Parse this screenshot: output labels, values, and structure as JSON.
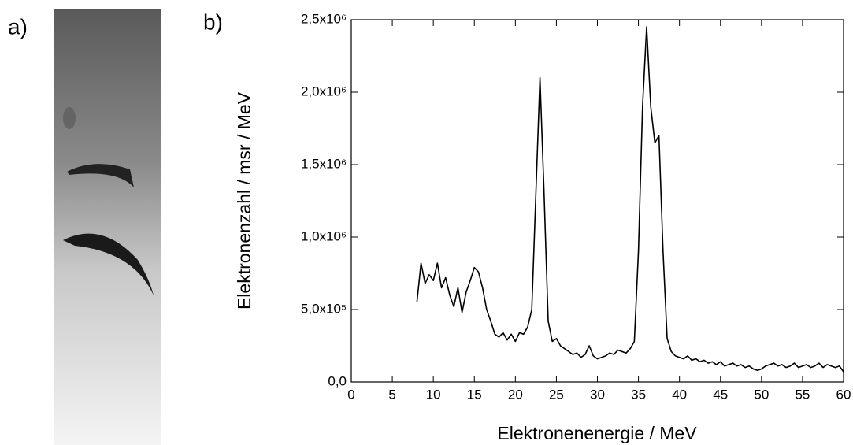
{
  "panel_labels": [
    "a)",
    "b)"
  ],
  "chart_data": {
    "type": "line",
    "xlabel": "Elektronenenergie / MeV",
    "ylabel": "Elektronenzahl / msr / MeV",
    "color": "#000000",
    "x": [
      8,
      8.5,
      9,
      9.5,
      10,
      10.5,
      11,
      11.5,
      12,
      12.5,
      13,
      13.5,
      14,
      14.5,
      15,
      15.5,
      16,
      16.5,
      17,
      17.5,
      18,
      18.5,
      19,
      19.5,
      20,
      20.5,
      21,
      21.5,
      22,
      22.5,
      23,
      23.5,
      24,
      24.5,
      25,
      25.5,
      26,
      26.5,
      27,
      27.5,
      28,
      28.5,
      29,
      29.5,
      30,
      30.5,
      31,
      31.5,
      32,
      32.5,
      33,
      33.5,
      34,
      34.5,
      35,
      35.5,
      36,
      36.5,
      37,
      37.5,
      38,
      38.5,
      39,
      39.5,
      40,
      40.5,
      41,
      41.5,
      42,
      42.5,
      43,
      43.5,
      44,
      44.5,
      45,
      45.5,
      46,
      46.5,
      47,
      47.5,
      48,
      48.5,
      49,
      49.5,
      50,
      50.5,
      51,
      51.5,
      52,
      52.5,
      53,
      53.5,
      54,
      54.5,
      55,
      55.5,
      56,
      56.5,
      57,
      57.5,
      58,
      58.5,
      59,
      59.5,
      60
    ],
    "values": [
      550000,
      820000,
      680000,
      740000,
      700000,
      820000,
      650000,
      720000,
      600000,
      520000,
      650000,
      480000,
      620000,
      700000,
      790000,
      760000,
      650000,
      500000,
      420000,
      330000,
      310000,
      340000,
      290000,
      330000,
      280000,
      340000,
      330000,
      380000,
      500000,
      1300000,
      2100000,
      1300000,
      420000,
      280000,
      300000,
      250000,
      230000,
      210000,
      190000,
      200000,
      170000,
      190000,
      250000,
      180000,
      160000,
      170000,
      180000,
      200000,
      190000,
      220000,
      210000,
      200000,
      230000,
      280000,
      900000,
      1900000,
      2450000,
      1900000,
      1650000,
      1700000,
      900000,
      300000,
      210000,
      180000,
      170000,
      160000,
      180000,
      150000,
      160000,
      140000,
      150000,
      130000,
      140000,
      120000,
      140000,
      110000,
      120000,
      130000,
      110000,
      120000,
      100000,
      110000,
      90000,
      80000,
      90000,
      110000,
      120000,
      130000,
      110000,
      120000,
      100000,
      110000,
      130000,
      100000,
      110000,
      120000,
      100000,
      110000,
      130000,
      100000,
      120000,
      110000,
      100000,
      110000,
      70000
    ],
    "xlim": [
      0,
      60
    ],
    "xticks": [
      0,
      5,
      10,
      15,
      20,
      25,
      30,
      35,
      40,
      45,
      50,
      55,
      60
    ],
    "ylim": [
      0,
      2500000
    ],
    "yticks": [
      {
        "value": 0,
        "label": "0,0"
      },
      {
        "value": 500000,
        "label": "5,0x10⁵"
      },
      {
        "value": 1000000,
        "label": "1,0x10⁶"
      },
      {
        "value": 1500000,
        "label": "1,5x10⁶"
      },
      {
        "value": 2000000,
        "label": "2,0x10⁶"
      },
      {
        "value": 2500000,
        "label": "2,5x10⁶"
      }
    ],
    "grid": false
  }
}
